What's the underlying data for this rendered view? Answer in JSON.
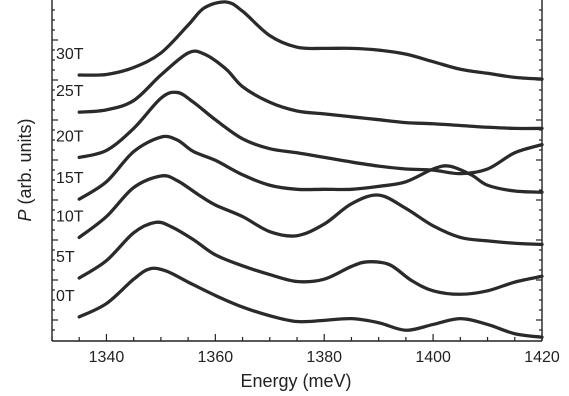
{
  "chart_data": {
    "type": "line",
    "title": "",
    "xlabel": "Energy  (meV)",
    "ylabel": "P (arb. units)",
    "ylabel_italic": "P",
    "ylabel_rest": " (arb. units)",
    "xlim": [
      1330,
      1420
    ],
    "x_ticks": [
      1340,
      1360,
      1380,
      1400,
      1420
    ],
    "x_tick_labels": [
      "1340",
      "1360",
      "1380",
      "1400",
      "1420"
    ],
    "y_ticks_labeled": false,
    "grid": false,
    "series": [
      {
        "name": "0T",
        "x": [
          1335,
          1340,
          1345,
          1348,
          1351,
          1355,
          1360,
          1365,
          1370,
          1375,
          1380,
          1385,
          1390,
          1395,
          1400,
          1405,
          1410,
          1415,
          1420
        ],
        "values": [
          0.45,
          0.68,
          1.1,
          1.28,
          1.24,
          1.05,
          0.82,
          0.62,
          0.47,
          0.37,
          0.39,
          0.42,
          0.35,
          0.22,
          0.32,
          0.42,
          0.32,
          0.16,
          0.1
        ]
      },
      {
        "name": "5T",
        "x": [
          1335,
          1340,
          1345,
          1349,
          1352,
          1356,
          1360,
          1365,
          1370,
          1375,
          1380,
          1385,
          1388,
          1392,
          1396,
          1400,
          1405,
          1410,
          1415,
          1420
        ],
        "values": [
          1.12,
          1.42,
          1.9,
          2.08,
          2.0,
          1.78,
          1.52,
          1.33,
          1.18,
          1.06,
          1.1,
          1.32,
          1.4,
          1.35,
          1.08,
          0.9,
          0.84,
          0.9,
          1.05,
          1.15
        ]
      },
      {
        "name": "10T",
        "x": [
          1335,
          1340,
          1345,
          1350,
          1353,
          1357,
          1360,
          1365,
          1370,
          1375,
          1380,
          1385,
          1390,
          1395,
          1400,
          1405,
          1410,
          1415,
          1420
        ],
        "values": [
          1.82,
          2.18,
          2.68,
          2.88,
          2.8,
          2.55,
          2.38,
          2.18,
          1.92,
          1.85,
          2.05,
          2.4,
          2.55,
          2.32,
          2.02,
          1.82,
          1.76,
          1.72,
          1.7
        ]
      },
      {
        "name": "15T",
        "x": [
          1335,
          1340,
          1345,
          1350,
          1353,
          1356,
          1360,
          1365,
          1370,
          1375,
          1380,
          1385,
          1390,
          1395,
          1400,
          1403,
          1407,
          1410,
          1415,
          1420
        ],
        "values": [
          2.48,
          2.78,
          3.3,
          3.55,
          3.5,
          3.3,
          3.15,
          2.9,
          2.72,
          2.65,
          2.65,
          2.65,
          2.7,
          2.78,
          3.0,
          3.05,
          2.9,
          2.72,
          2.62,
          2.6
        ]
      },
      {
        "name": "20T",
        "x": [
          1335,
          1340,
          1345,
          1350,
          1353,
          1356,
          1360,
          1365,
          1370,
          1375,
          1380,
          1385,
          1390,
          1395,
          1400,
          1405,
          1410,
          1415,
          1420
        ],
        "values": [
          3.2,
          3.32,
          3.7,
          4.22,
          4.32,
          4.15,
          3.85,
          3.52,
          3.35,
          3.28,
          3.2,
          3.12,
          3.05,
          3.0,
          2.98,
          2.92,
          3.0,
          3.28,
          3.42
        ]
      },
      {
        "name": "25T",
        "x": [
          1335,
          1340,
          1345,
          1350,
          1355,
          1358,
          1362,
          1365,
          1370,
          1375,
          1380,
          1385,
          1390,
          1395,
          1400,
          1405,
          1410,
          1415,
          1420
        ],
        "values": [
          3.98,
          4.02,
          4.18,
          4.62,
          5.0,
          4.98,
          4.72,
          4.42,
          4.15,
          4.0,
          3.95,
          3.9,
          3.85,
          3.8,
          3.78,
          3.75,
          3.72,
          3.7,
          3.7
        ]
      },
      {
        "name": "30T",
        "x": [
          1335,
          1340,
          1345,
          1350,
          1355,
          1358,
          1362,
          1365,
          1370,
          1375,
          1380,
          1385,
          1390,
          1395,
          1400,
          1405,
          1410,
          1415,
          1420
        ],
        "values": [
          4.62,
          4.63,
          4.75,
          5.0,
          5.48,
          5.78,
          5.88,
          5.72,
          5.3,
          5.1,
          5.08,
          5.08,
          5.05,
          4.98,
          4.85,
          4.72,
          4.65,
          4.58,
          4.55
        ]
      }
    ]
  }
}
